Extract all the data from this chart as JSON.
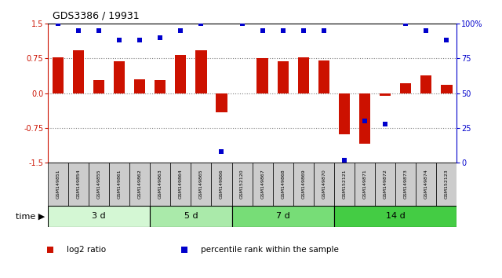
{
  "title": "GDS3386 / 19931",
  "samples": [
    "GSM149851",
    "GSM149854",
    "GSM149855",
    "GSM149861",
    "GSM149862",
    "GSM149863",
    "GSM149864",
    "GSM149865",
    "GSM149866",
    "GSM152120",
    "GSM149867",
    "GSM149868",
    "GSM149869",
    "GSM149870",
    "GSM152121",
    "GSM149871",
    "GSM149872",
    "GSM149873",
    "GSM149874",
    "GSM152123"
  ],
  "log2_ratio": [
    0.78,
    0.92,
    0.28,
    0.68,
    0.3,
    0.28,
    0.82,
    0.92,
    -0.42,
    0.0,
    0.75,
    0.68,
    0.78,
    0.7,
    -0.88,
    -1.1,
    -0.05,
    0.22,
    0.38,
    0.18
  ],
  "percentile_rank": [
    100,
    95,
    95,
    88,
    88,
    90,
    95,
    100,
    8,
    100,
    95,
    95,
    95,
    95,
    2,
    30,
    28,
    100,
    95,
    88
  ],
  "groups": [
    {
      "label": "3 d",
      "start": 0,
      "end": 5,
      "color": "#d4f7d4"
    },
    {
      "label": "5 d",
      "start": 5,
      "end": 9,
      "color": "#aaeaaa"
    },
    {
      "label": "7 d",
      "start": 9,
      "end": 14,
      "color": "#77dd77"
    },
    {
      "label": "14 d",
      "start": 14,
      "end": 20,
      "color": "#44cc44"
    }
  ],
  "bar_color": "#cc1100",
  "dot_color": "#0000cc",
  "ylim_left": [
    -1.5,
    1.5
  ],
  "ylim_right": [
    0,
    100
  ],
  "yticks_left": [
    -1.5,
    -0.75,
    0.0,
    0.75,
    1.5
  ],
  "yticks_right": [
    0,
    25,
    50,
    75,
    100
  ],
  "dotted_lines": [
    -0.75,
    0.0,
    0.75
  ],
  "legend_items": [
    {
      "color": "#cc1100",
      "label": "log2 ratio"
    },
    {
      "color": "#0000cc",
      "label": "percentile rank within the sample"
    }
  ],
  "background_color": "#ffffff",
  "sample_box_color": "#cccccc",
  "bottom_label": "time"
}
